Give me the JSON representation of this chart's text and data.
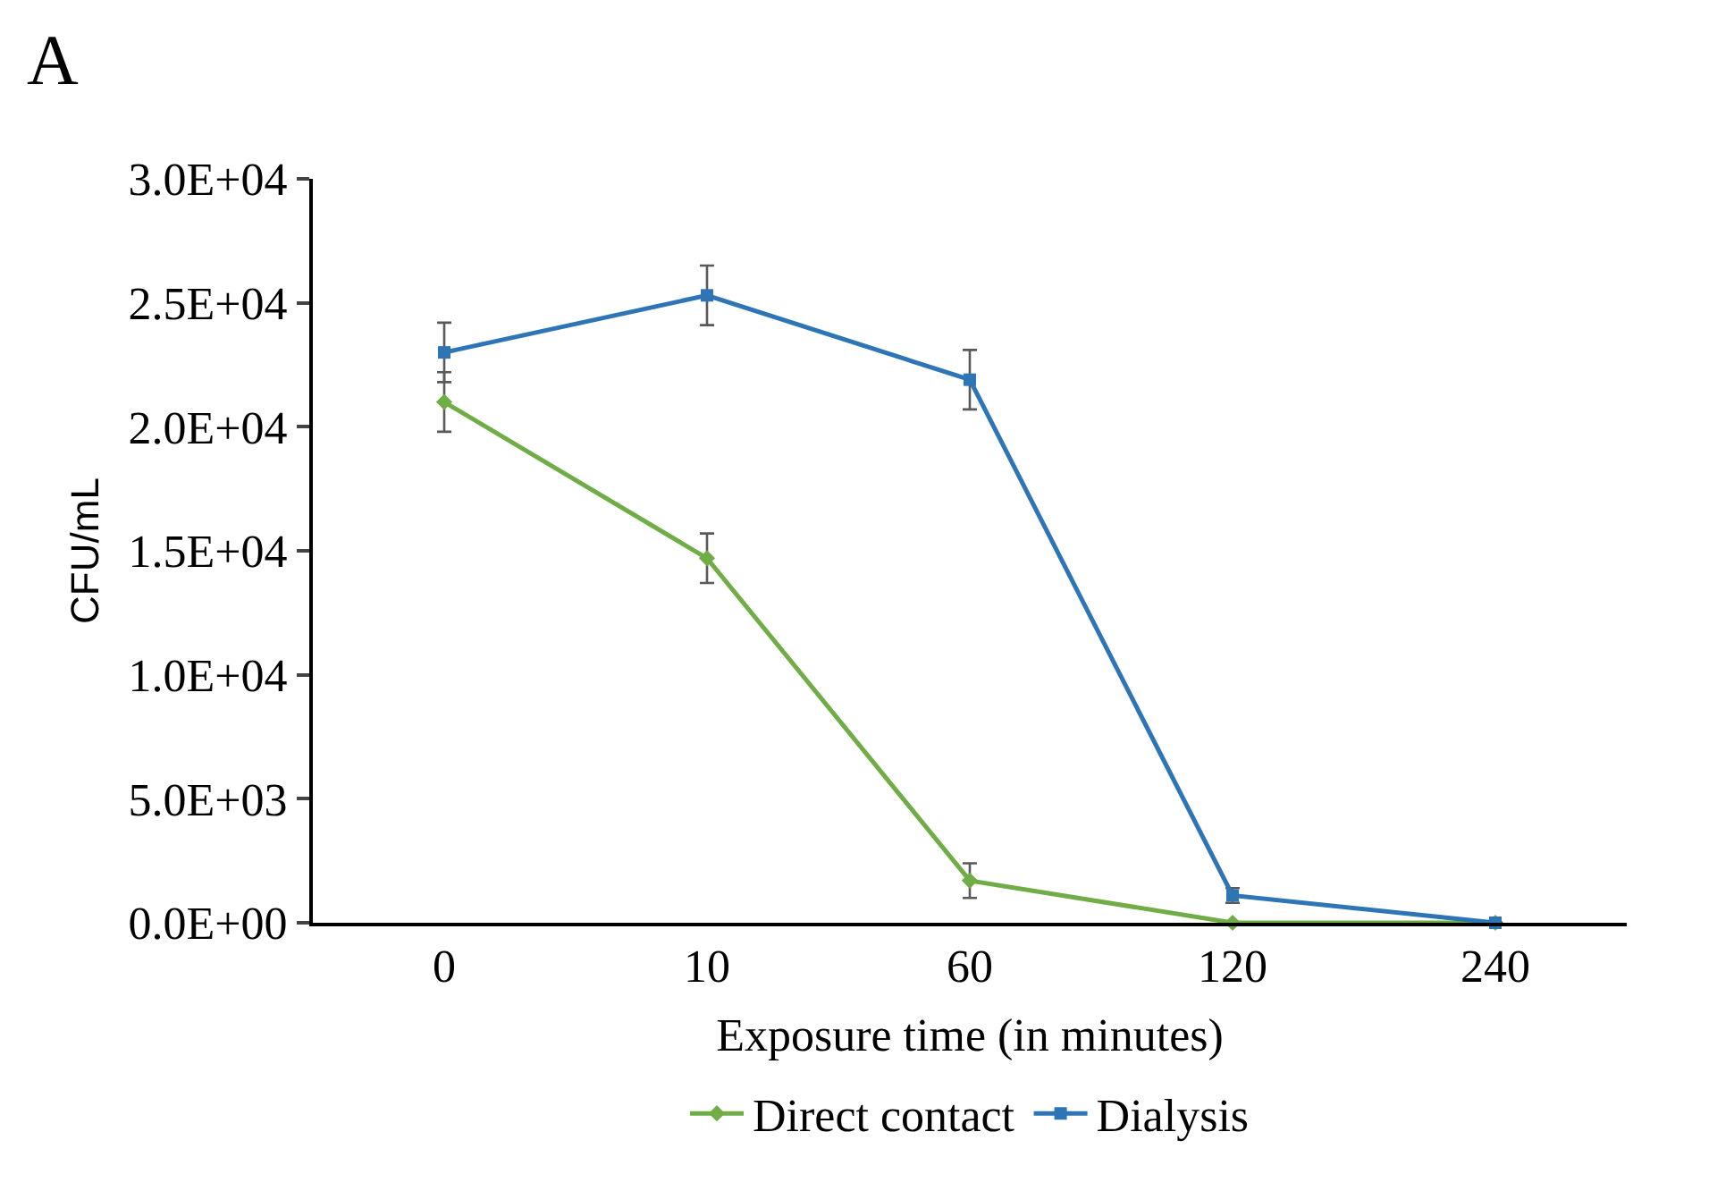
{
  "chart_data": {
    "type": "line",
    "xlabel": "Exposure time (in minutes)",
    "ylabel": "CFU/mL",
    "annotations": [
      "A"
    ],
    "categories": [
      "0",
      "10",
      "60",
      "120",
      "240"
    ],
    "series": [
      {
        "name": "Direct contact",
        "color": "#70ad47",
        "marker": "diamond",
        "values": [
          21000,
          14700,
          1700,
          0,
          0
        ],
        "errors": [
          1200,
          1000,
          700,
          null,
          null
        ]
      },
      {
        "name": "Dialysis",
        "color": "#2e75b6",
        "marker": "square",
        "values": [
          23000,
          25300,
          21900,
          1100,
          0
        ],
        "errors": [
          1200,
          1200,
          1200,
          300,
          null
        ]
      }
    ],
    "ylim": [
      0,
      30000
    ],
    "yticks": [
      {
        "value": 0,
        "label": "0.0E+00"
      },
      {
        "value": 5000,
        "label": "5.0E+03"
      },
      {
        "value": 10000,
        "label": "1.0E+04"
      },
      {
        "value": 15000,
        "label": "1.5E+04"
      },
      {
        "value": 20000,
        "label": "2.0E+04"
      },
      {
        "value": 25000,
        "label": "2.5E+04"
      },
      {
        "value": 30000,
        "label": "3.0E+04"
      }
    ],
    "legend": "bottom"
  }
}
